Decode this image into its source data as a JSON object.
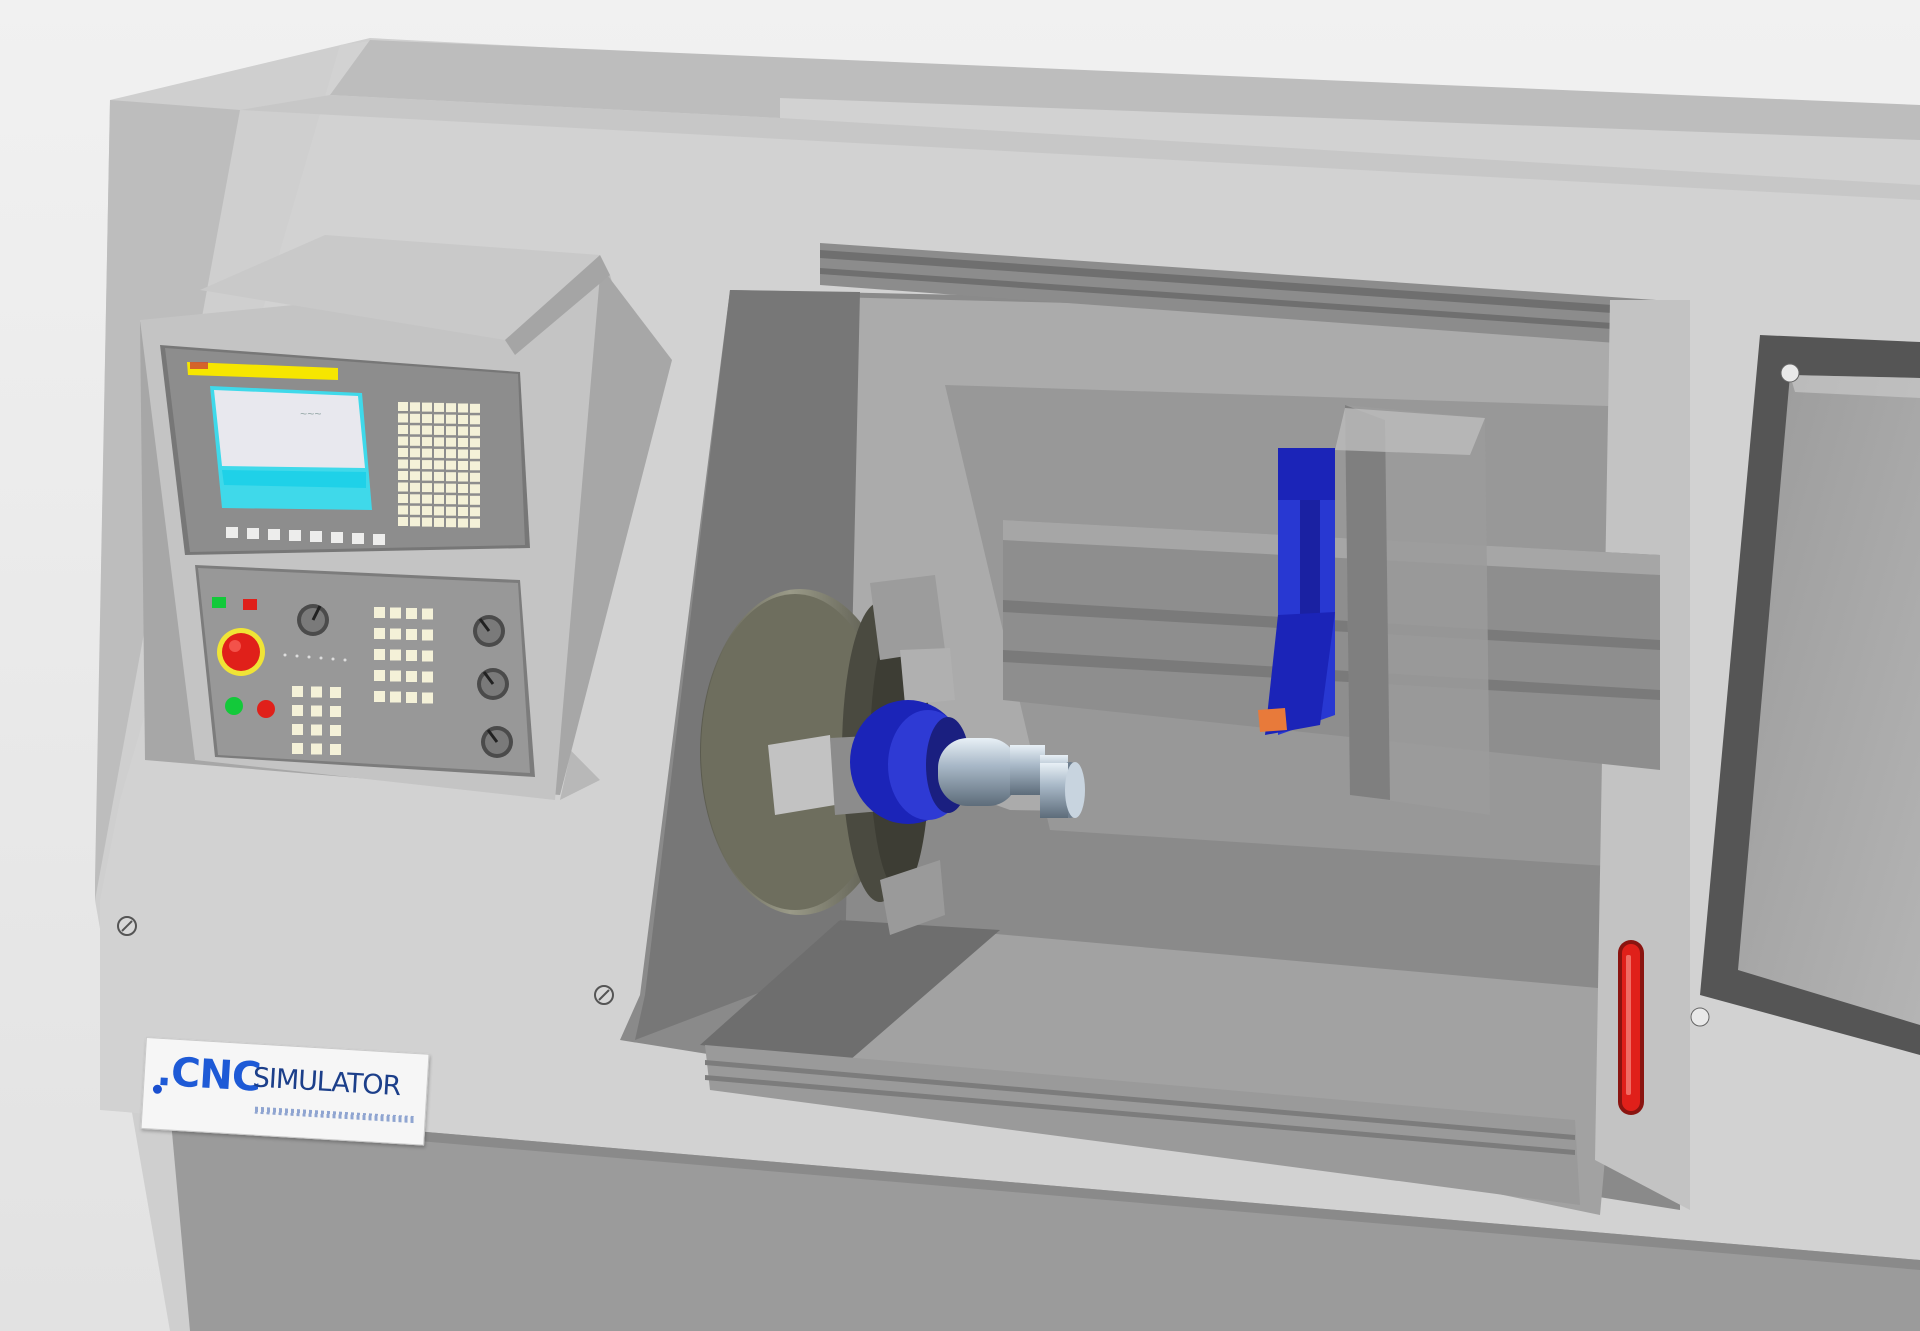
{
  "logo": {
    "brand_main": ".CNC",
    "brand_sub": "SIMULATOR"
  },
  "controller": {
    "screen_color": "#e8e8ee",
    "screen_bar_color": "#1fd1e8",
    "status_bar_color": "#f6e600",
    "keypad_key_color": "#f4f1d8",
    "emergency_stop_color": "#e0201a",
    "indicator_green": "#13c93a",
    "indicator_red": "#e0201a"
  },
  "colors": {
    "background": "#e8e8e8",
    "machine_body": "#cfcfcf",
    "chuck_jaw_blue": "#1b24b8",
    "tool_holder_blue": "#1b24b8",
    "cutting_insert": "#e87a3a",
    "door_handle": "#e0201a"
  },
  "icons": [
    "emergency-stop-icon",
    "spindle-knob-icon",
    "feed-knob-icon",
    "rapid-knob-icon",
    "mode-dial-icon",
    "screw-icon",
    "door-handle-icon"
  ]
}
